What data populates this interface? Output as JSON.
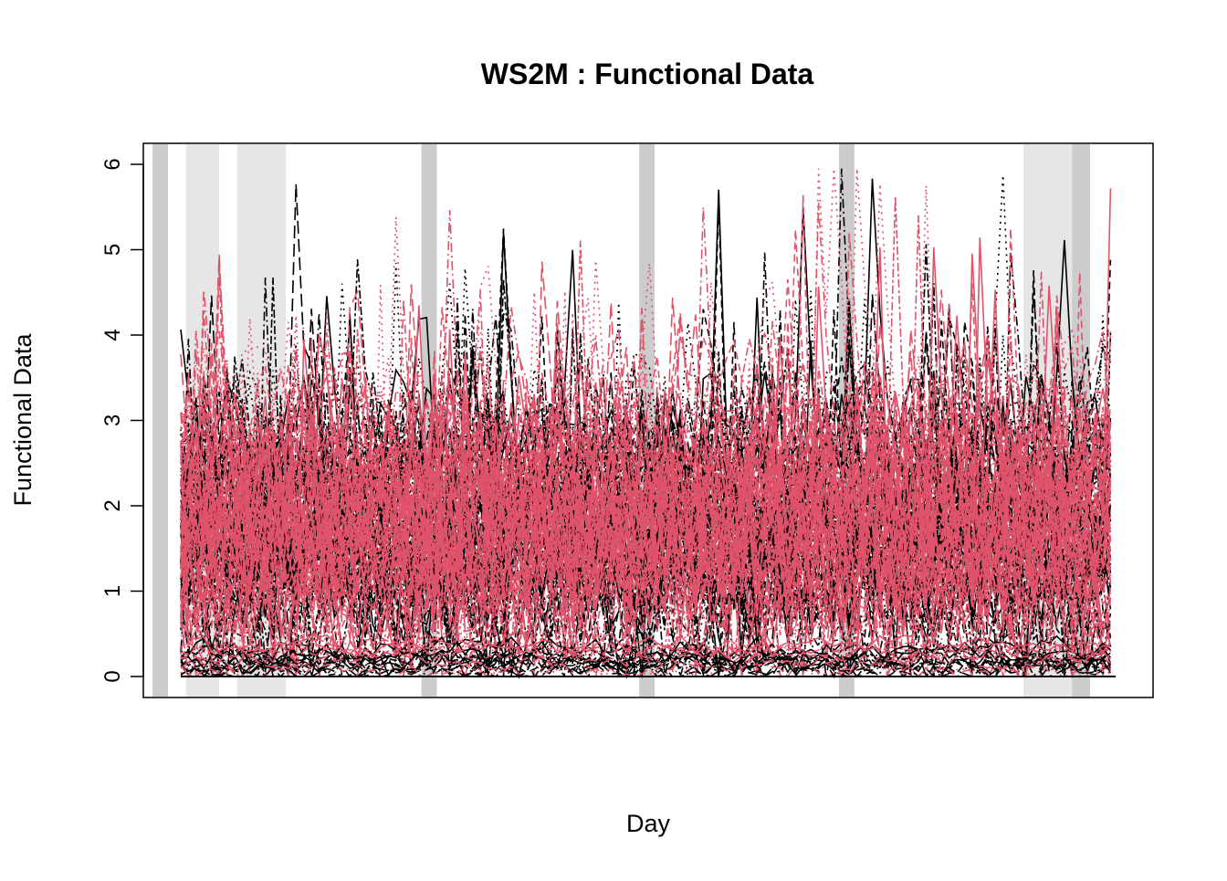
{
  "chart_data": {
    "type": "line",
    "title": "WS2M : Functional Data",
    "xlabel": "Day",
    "ylabel": "Functional Data",
    "ylim": [
      0,
      6
    ],
    "yticks": [
      0,
      1,
      2,
      3,
      4,
      5,
      6
    ],
    "xlim": [
      1,
      366
    ],
    "grid": false,
    "legend": "none",
    "n_points": 366,
    "colors": {
      "series_black": "#000000",
      "series_red": "#DF536B",
      "band_dark": "#CCCCCC",
      "band_light": "#E6E6E6"
    },
    "shaded_bands": [
      {
        "from": -10,
        "to": -4,
        "tone": "dark"
      },
      {
        "from": 3,
        "to": 16,
        "tone": "light"
      },
      {
        "from": 23,
        "to": 42,
        "tone": "light"
      },
      {
        "from": 95,
        "to": 101,
        "tone": "dark"
      },
      {
        "from": 180,
        "to": 186,
        "tone": "dark"
      },
      {
        "from": 258,
        "to": 264,
        "tone": "dark"
      },
      {
        "from": 330,
        "to": 349,
        "tone": "light"
      },
      {
        "from": 349,
        "to": 356,
        "tone": "dark"
      }
    ],
    "series_groups": [
      {
        "color": "series_black",
        "count": 60,
        "level_range": [
          0.9,
          2.6
        ],
        "spread": 0.8
      },
      {
        "color": "series_red",
        "count": 60,
        "level_range": [
          1.0,
          2.8
        ],
        "spread": 0.9
      },
      {
        "color": "series_black",
        "count": 14,
        "level_range": [
          0.02,
          0.35
        ],
        "spread": 0.12
      },
      {
        "color": "series_red",
        "count": 8,
        "level_range": [
          0.05,
          0.4
        ],
        "spread": 0.1
      }
    ]
  }
}
